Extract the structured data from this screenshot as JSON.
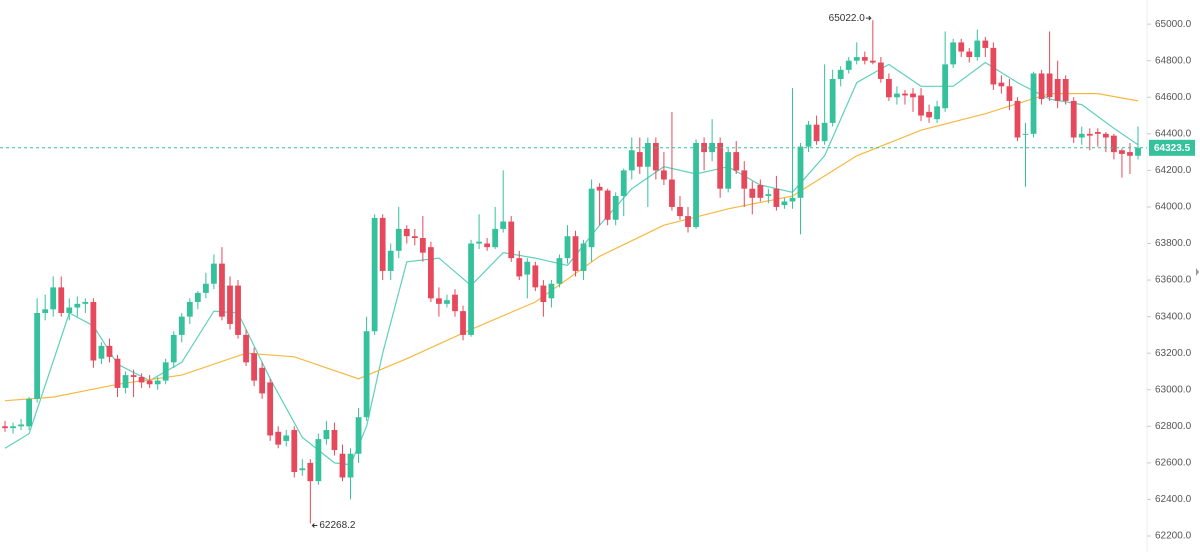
{
  "chart_data": {
    "type": "candlestick",
    "up_color": "#35c19c",
    "down_color": "#e5495b",
    "ylim": [
      62200,
      65050
    ],
    "yticks": [
      {
        "value": 62200,
        "label": "62200.0"
      },
      {
        "value": 62400,
        "label": "62400.0"
      },
      {
        "value": 62600,
        "label": "62600.0"
      },
      {
        "value": 62800,
        "label": "62800.0"
      },
      {
        "value": 63000,
        "label": "63000.0"
      },
      {
        "value": 63200,
        "label": "63200.0"
      },
      {
        "value": 63400,
        "label": "63400.0"
      },
      {
        "value": 63600,
        "label": "63600.0"
      },
      {
        "value": 63800,
        "label": "63800.0"
      },
      {
        "value": 64000,
        "label": "64000.0"
      },
      {
        "value": 64200,
        "label": "64200.0"
      },
      {
        "value": 64400,
        "label": "64400.0"
      },
      {
        "value": 64600,
        "label": "64600.0"
      },
      {
        "value": 64800,
        "label": "64800.0"
      },
      {
        "value": 65000,
        "label": "65000.0"
      }
    ],
    "candles": [
      [
        62800,
        62830,
        62770,
        62790
      ],
      [
        62790,
        62820,
        62760,
        62800
      ],
      [
        62800,
        62840,
        62780,
        62810
      ],
      [
        62800,
        62960,
        62780,
        62950
      ],
      [
        62950,
        63500,
        62930,
        63420
      ],
      [
        63420,
        63520,
        63380,
        63440
      ],
      [
        63440,
        63620,
        63400,
        63560
      ],
      [
        63560,
        63620,
        63400,
        63420
      ],
      [
        63420,
        63500,
        63380,
        63450
      ],
      [
        63450,
        63510,
        63400,
        63470
      ],
      [
        63470,
        63500,
        63420,
        63480
      ],
      [
        63480,
        63500,
        63120,
        63160
      ],
      [
        63170,
        63260,
        63140,
        63240
      ],
      [
        63240,
        63280,
        63150,
        63180
      ],
      [
        63170,
        63190,
        62960,
        63010
      ],
      [
        63010,
        63100,
        62980,
        63080
      ],
      [
        63080,
        63110,
        62960,
        63070
      ],
      [
        63070,
        63090,
        63010,
        63040
      ],
      [
        63050,
        63080,
        63010,
        63030
      ],
      [
        63030,
        63070,
        63000,
        63050
      ],
      [
        63050,
        63170,
        63030,
        63150
      ],
      [
        63150,
        63320,
        63120,
        63300
      ],
      [
        63300,
        63420,
        63260,
        63400
      ],
      [
        63400,
        63500,
        63360,
        63480
      ],
      [
        63480,
        63540,
        63440,
        63530
      ],
      [
        63530,
        63640,
        63500,
        63580
      ],
      [
        63580,
        63740,
        63550,
        63690
      ],
      [
        63690,
        63780,
        63380,
        63400
      ],
      [
        63570,
        63620,
        63330,
        63360
      ],
      [
        63570,
        63600,
        63280,
        63300
      ],
      [
        63300,
        63330,
        63130,
        63150
      ],
      [
        63200,
        63230,
        63020,
        63050
      ],
      [
        63120,
        63150,
        62950,
        62980
      ],
      [
        63040,
        63060,
        62720,
        62750
      ],
      [
        62770,
        62800,
        62680,
        62700
      ],
      [
        62720,
        62780,
        62690,
        62750
      ],
      [
        62780,
        62800,
        62520,
        62550
      ],
      [
        62560,
        62620,
        62530,
        62570
      ],
      [
        62600,
        62620,
        62268.2,
        62500
      ],
      [
        62500,
        62760,
        62480,
        62730
      ],
      [
        62730,
        62830,
        62700,
        62780
      ],
      [
        62780,
        62820,
        62640,
        62670
      ],
      [
        62650,
        62700,
        62500,
        62520
      ],
      [
        62520,
        62680,
        62400,
        62650
      ],
      [
        62650,
        62900,
        62600,
        62850
      ],
      [
        62850,
        63400,
        62830,
        63320
      ],
      [
        63320,
        63960,
        63300,
        63940
      ],
      [
        63940,
        63960,
        63600,
        63650
      ],
      [
        63650,
        63800,
        63600,
        63760
      ],
      [
        63760,
        64000,
        63720,
        63880
      ],
      [
        63880,
        63900,
        63800,
        63840
      ],
      [
        63840,
        63880,
        63790,
        63830
      ],
      [
        63830,
        63950,
        63700,
        63750
      ],
      [
        63780,
        63810,
        63480,
        63500
      ],
      [
        63500,
        63560,
        63400,
        63470
      ],
      [
        63470,
        63520,
        63450,
        63490
      ],
      [
        63520,
        63550,
        63400,
        63430
      ],
      [
        63430,
        63460,
        63270,
        63300
      ],
      [
        63300,
        63820,
        63290,
        63800
      ],
      [
        63800,
        63960,
        63770,
        63810
      ],
      [
        63800,
        63830,
        63760,
        63780
      ],
      [
        63780,
        64000,
        63770,
        63880
      ],
      [
        63880,
        64200,
        63860,
        63920
      ],
      [
        63920,
        63950,
        63700,
        63720
      ],
      [
        63720,
        63760,
        63600,
        63620
      ],
      [
        63630,
        63720,
        63500,
        63700
      ],
      [
        63680,
        63700,
        63540,
        63560
      ],
      [
        63570,
        63600,
        63400,
        63480
      ],
      [
        63500,
        63600,
        63450,
        63580
      ],
      [
        63580,
        63740,
        63560,
        63720
      ],
      [
        63720,
        63900,
        63690,
        63840
      ],
      [
        63840,
        63870,
        63620,
        63650
      ],
      [
        63650,
        63820,
        63600,
        63800
      ],
      [
        63780,
        64150,
        63700,
        64100
      ],
      [
        64110,
        64130,
        63900,
        64090
      ],
      [
        64090,
        64100,
        63900,
        63930
      ],
      [
        63930,
        64080,
        63900,
        64060
      ],
      [
        64060,
        64210,
        63950,
        64200
      ],
      [
        64200,
        64380,
        64150,
        64310
      ],
      [
        64300,
        64380,
        64180,
        64220
      ],
      [
        64220,
        64380,
        64000,
        64350
      ],
      [
        64350,
        64380,
        64150,
        64200
      ],
      [
        64200,
        64300,
        64120,
        64150
      ],
      [
        64150,
        64520,
        63980,
        64000
      ],
      [
        64000,
        64060,
        63930,
        63950
      ],
      [
        63950,
        64000,
        63860,
        63890
      ],
      [
        63890,
        64370,
        63880,
        64350
      ],
      [
        64350,
        64380,
        64200,
        64300
      ],
      [
        64300,
        64480,
        64250,
        64350
      ],
      [
        64350,
        64380,
        64050,
        64100
      ],
      [
        64100,
        64320,
        64080,
        64300
      ],
      [
        64300,
        64360,
        64180,
        64200
      ],
      [
        64200,
        64250,
        64000,
        64100
      ],
      [
        64100,
        64140,
        63960,
        64050
      ],
      [
        64120,
        64150,
        64030,
        64050
      ],
      [
        64060,
        64100,
        64020,
        64070
      ],
      [
        64100,
        64170,
        63980,
        64000
      ],
      [
        64010,
        64050,
        63990,
        64030
      ],
      [
        64030,
        64650,
        63990,
        64050
      ],
      [
        64050,
        64350,
        63850,
        64330
      ],
      [
        64330,
        64470,
        64300,
        64450
      ],
      [
        64450,
        64500,
        64340,
        64360
      ],
      [
        64360,
        64780,
        64340,
        64460
      ],
      [
        64460,
        64750,
        64440,
        64700
      ],
      [
        64700,
        64770,
        64660,
        64750
      ],
      [
        64750,
        64820,
        64730,
        64800
      ],
      [
        64800,
        64900,
        64780,
        64820
      ],
      [
        64820,
        64850,
        64780,
        64800
      ],
      [
        64800,
        65022,
        64780,
        64790
      ],
      [
        64790,
        64820,
        64680,
        64700
      ],
      [
        64700,
        64730,
        64580,
        64600
      ],
      [
        64600,
        64660,
        64560,
        64620
      ],
      [
        64620,
        64640,
        64560,
        64610
      ],
      [
        64620,
        64650,
        64520,
        64600
      ],
      [
        64610,
        64650,
        64470,
        64500
      ],
      [
        64520,
        64560,
        64460,
        64490
      ],
      [
        64480,
        64580,
        64460,
        64550
      ],
      [
        64540,
        64960,
        64520,
        64780
      ],
      [
        64780,
        64920,
        64760,
        64900
      ],
      [
        64900,
        64920,
        64820,
        64850
      ],
      [
        64850,
        64870,
        64790,
        64820
      ],
      [
        64820,
        64970,
        64800,
        64910
      ],
      [
        64910,
        64930,
        64820,
        64870
      ],
      [
        64870,
        64900,
        64640,
        64670
      ],
      [
        64680,
        64720,
        64620,
        64660
      ],
      [
        64660,
        64700,
        64530,
        64580
      ],
      [
        64580,
        64600,
        64360,
        64380
      ],
      [
        64400,
        64460,
        64110,
        64400
      ],
      [
        64400,
        64740,
        64380,
        64730
      ],
      [
        64730,
        64750,
        64560,
        64590
      ],
      [
        64730,
        64960,
        64580,
        64600
      ],
      [
        64700,
        64800,
        64540,
        64580
      ],
      [
        64700,
        64720,
        64560,
        64580
      ],
      [
        64580,
        64600,
        64350,
        64380
      ],
      [
        64380,
        64440,
        64340,
        64400
      ],
      [
        64400,
        64430,
        64310,
        64390
      ],
      [
        64410,
        64430,
        64330,
        64400
      ],
      [
        64400,
        64410,
        64300,
        64380
      ],
      [
        64390,
        64400,
        64260,
        64300
      ],
      [
        64310,
        64320,
        64160,
        64290
      ],
      [
        64300,
        64350,
        64180,
        64280
      ],
      [
        64280,
        64440,
        64260,
        64323.5
      ]
    ],
    "series": [
      {
        "color": "#5fd0bd",
        "x": [
          0,
          3,
          8,
          11,
          14,
          18,
          22,
          26,
          29,
          33,
          37,
          41,
          43,
          45,
          47,
          50,
          54,
          58,
          62,
          66,
          70,
          74,
          78,
          82,
          86,
          90,
          94,
          98,
          102,
          106,
          110,
          114,
          118,
          122,
          126,
          130,
          134,
          138,
          141
        ],
        "values": [
          62680,
          62760,
          63420,
          63350,
          63140,
          63050,
          63150,
          63430,
          63420,
          63060,
          62740,
          62600,
          62590,
          62800,
          63200,
          63700,
          63720,
          63570,
          63750,
          63720,
          63680,
          63900,
          64100,
          64220,
          64180,
          64220,
          64120,
          64080,
          64280,
          64680,
          64780,
          64660,
          64660,
          64790,
          64680,
          64590,
          64560,
          64430,
          64340
        ]
      },
      {
        "color": "#f5b942",
        "x": [
          0,
          6,
          14,
          22,
          30,
          36,
          44,
          50,
          58,
          66,
          74,
          82,
          90,
          98,
          106,
          114,
          122,
          130,
          136,
          141
        ],
        "values": [
          62940,
          62960,
          63030,
          63080,
          63200,
          63180,
          63060,
          63170,
          63330,
          63480,
          63730,
          63900,
          63990,
          64060,
          64280,
          64420,
          64510,
          64620,
          64620,
          64580
        ]
      }
    ],
    "annotations": [
      {
        "value": 65022,
        "label": "65022.0"
      },
      {
        "value": 62268.2,
        "label": "62268.2"
      }
    ]
  }
}
